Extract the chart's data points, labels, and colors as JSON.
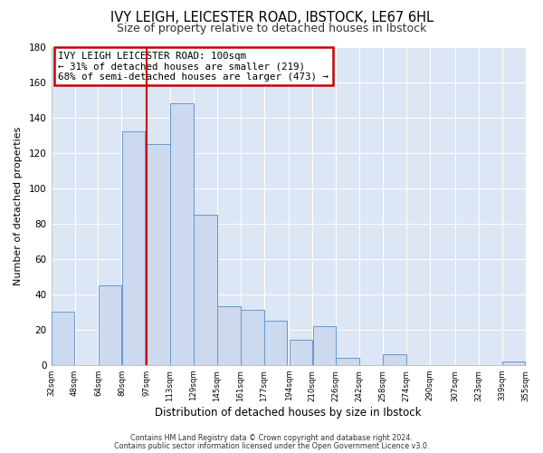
{
  "title": "IVY LEIGH, LEICESTER ROAD, IBSTOCK, LE67 6HL",
  "subtitle": "Size of property relative to detached houses in Ibstock",
  "xlabel": "Distribution of detached houses by size in Ibstock",
  "ylabel": "Number of detached properties",
  "bar_left_edges": [
    32,
    48,
    64,
    80,
    97,
    113,
    129,
    145,
    161,
    177,
    194,
    210,
    226,
    242,
    258,
    274,
    290,
    307,
    323,
    339
  ],
  "bar_heights": [
    30,
    0,
    45,
    132,
    125,
    148,
    85,
    33,
    31,
    25,
    14,
    22,
    4,
    0,
    6,
    0,
    0,
    0,
    0,
    2
  ],
  "tick_labels": [
    "32sqm",
    "48sqm",
    "64sqm",
    "80sqm",
    "97sqm",
    "113sqm",
    "129sqm",
    "145sqm",
    "161sqm",
    "177sqm",
    "194sqm",
    "210sqm",
    "226sqm",
    "242sqm",
    "258sqm",
    "274sqm",
    "290sqm",
    "307sqm",
    "323sqm",
    "339sqm",
    "355sqm"
  ],
  "tick_positions": [
    32,
    48,
    64,
    80,
    97,
    113,
    129,
    145,
    161,
    177,
    194,
    210,
    226,
    242,
    258,
    274,
    290,
    307,
    323,
    339,
    355
  ],
  "bar_color": "#ccd9ee",
  "bar_edge_color": "#6699cc",
  "vline_x": 97,
  "vline_color": "#cc0000",
  "ylim": [
    0,
    180
  ],
  "yticks": [
    0,
    20,
    40,
    60,
    80,
    100,
    120,
    140,
    160,
    180
  ],
  "annotation_text": "IVY LEIGH LEICESTER ROAD: 100sqm\n← 31% of detached houses are smaller (219)\n68% of semi-detached houses are larger (473) →",
  "annotation_box_color": "#ffffff",
  "annotation_box_edge_color": "#cc0000",
  "footnote1": "Contains HM Land Registry data © Crown copyright and database right 2024.",
  "footnote2": "Contains public sector information licensed under the Open Government Licence v3.0.",
  "plot_bg_color": "#dce6f5",
  "fig_bg_color": "#ffffff",
  "grid_color": "#ffffff",
  "title_fontsize": 10.5,
  "subtitle_fontsize": 9
}
